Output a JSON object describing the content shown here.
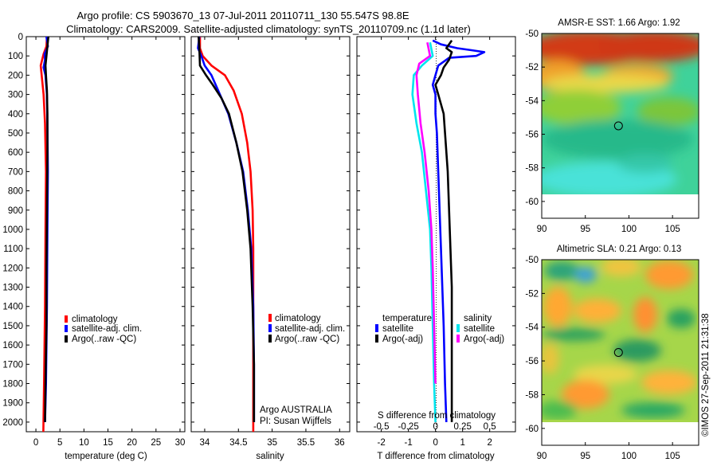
{
  "figure": {
    "title_line1": "Argo profile: CS 5903670_13 07-Jul-2011 20110711_130 55.547S 98.8E",
    "title_line2": "Climatology: CARS2009. Satellite-adjusted climatology: synTS_20110709.nc (1.1d later)",
    "stamp": "©IMOS 27-Sep-2011 21:31:38"
  },
  "colors": {
    "climatology": "#ff0000",
    "satellite": "#0000ff",
    "argo": "#000000",
    "salinity_satellite": "#00e5ee",
    "salinity_argo": "#ff00ff"
  },
  "chart_data": [
    {
      "type": "line",
      "title": "",
      "xlabel": "temperature (deg C)",
      "ylabel": "",
      "xlim": [
        -2,
        31
      ],
      "ylim": [
        2050,
        0
      ],
      "xticks": [
        "0",
        "5",
        "10",
        "15",
        "20",
        "25",
        "30"
      ],
      "yticks": [
        "0",
        "100",
        "200",
        "300",
        "400",
        "500",
        "600",
        "700",
        "800",
        "900",
        "1000",
        "1100",
        "1200",
        "1300",
        "1400",
        "1500",
        "1600",
        "1700",
        "1800",
        "1900",
        "2000"
      ],
      "legend": [
        "climatology",
        "satellite-adj. clim.",
        "Argo(..raw -QC)"
      ],
      "legend_position": "lower-center",
      "series": [
        {
          "name": "climatology",
          "color": "#ff0000",
          "points": [
            [
              2.3,
              0
            ],
            [
              2.2,
              50
            ],
            [
              1.6,
              90
            ],
            [
              1.0,
              150
            ],
            [
              1.2,
              200
            ],
            [
              1.6,
              300
            ],
            [
              1.9,
              450
            ],
            [
              2.1,
              700
            ],
            [
              2.0,
              1000
            ],
            [
              1.9,
              1400
            ],
            [
              1.7,
              1800
            ],
            [
              1.55,
              2050
            ]
          ]
        },
        {
          "name": "satellite-adj. clim.",
          "color": "#0000ff",
          "points": [
            [
              2.2,
              0
            ],
            [
              2.5,
              50
            ],
            [
              1.8,
              90
            ],
            [
              1.9,
              120
            ],
            [
              1.6,
              160
            ],
            [
              2.0,
              200
            ],
            [
              2.3,
              300
            ],
            [
              2.4,
              450
            ],
            [
              2.5,
              700
            ],
            [
              2.4,
              1000
            ],
            [
              2.3,
              1400
            ],
            [
              2.1,
              1800
            ],
            [
              1.9,
              2000
            ]
          ]
        },
        {
          "name": "Argo(..raw -QC)",
          "color": "#000000",
          "points": [
            [
              2.6,
              0
            ],
            [
              2.4,
              50
            ],
            [
              2.2,
              100
            ],
            [
              2.0,
              150
            ],
            [
              2.1,
              200
            ],
            [
              2.3,
              280
            ],
            [
              2.4,
              400
            ],
            [
              2.4,
              600
            ],
            [
              2.3,
              900
            ],
            [
              2.2,
              1200
            ],
            [
              2.2,
              1500
            ],
            [
              2.0,
              1800
            ],
            [
              1.9,
              2000
            ]
          ]
        }
      ]
    },
    {
      "type": "line",
      "title": "",
      "xlabel": "salinity",
      "ylabel": "",
      "xlim": [
        33.8,
        36.15
      ],
      "ylim": [
        2050,
        0
      ],
      "xticks": [
        "34",
        "34.5",
        "35",
        "35.5",
        "36"
      ],
      "legend": [
        "climatology",
        "satellite-adj. clim.",
        "Argo(..raw -QC)"
      ],
      "legend_position": "lower-right",
      "annotations": [
        "Argo AUSTRALIA",
        "PI: Susan Wijffels"
      ],
      "series": [
        {
          "name": "climatology",
          "color": "#ff0000",
          "points": [
            [
              33.93,
              0
            ],
            [
              33.93,
              60
            ],
            [
              33.97,
              100
            ],
            [
              34.1,
              150
            ],
            [
              34.3,
              200
            ],
            [
              34.43,
              280
            ],
            [
              34.55,
              400
            ],
            [
              34.63,
              550
            ],
            [
              34.68,
              700
            ],
            [
              34.71,
              900
            ],
            [
              34.72,
              1100
            ],
            [
              34.72,
              1400
            ],
            [
              34.72,
              1700
            ],
            [
              34.72,
              2050
            ]
          ]
        },
        {
          "name": "satellite-adj. clim.",
          "color": "#0000ff",
          "points": [
            [
              33.92,
              0
            ],
            [
              33.9,
              60
            ],
            [
              33.95,
              100
            ],
            [
              34.0,
              150
            ],
            [
              34.1,
              200
            ],
            [
              34.2,
              280
            ],
            [
              34.35,
              400
            ],
            [
              34.47,
              550
            ],
            [
              34.57,
              700
            ],
            [
              34.64,
              900
            ],
            [
              34.69,
              1100
            ],
            [
              34.72,
              1400
            ],
            [
              34.73,
              1700
            ],
            [
              34.73,
              2000
            ]
          ]
        },
        {
          "name": "Argo(..raw -QC)",
          "color": "#000000",
          "points": [
            [
              33.91,
              0
            ],
            [
              33.92,
              60
            ],
            [
              33.93,
              150
            ],
            [
              34.02,
              200
            ],
            [
              34.12,
              250
            ],
            [
              34.25,
              320
            ],
            [
              34.36,
              400
            ],
            [
              34.47,
              550
            ],
            [
              34.56,
              700
            ],
            [
              34.63,
              900
            ],
            [
              34.68,
              1100
            ],
            [
              34.71,
              1400
            ],
            [
              34.73,
              1700
            ],
            [
              34.73,
              2000
            ]
          ]
        }
      ]
    },
    {
      "type": "line",
      "title": "",
      "xlabel": "T difference from climatology",
      "xlabel_top": "S difference from climatology",
      "ylabel": "",
      "xlim": [
        -2.9,
        2.95
      ],
      "ylim": [
        2050,
        0
      ],
      "xticks": [
        "-2",
        "-1",
        "0",
        "1",
        "2"
      ],
      "xticks_s": [
        "-0.5",
        "-0.25",
        "0",
        "0.25",
        "0.5"
      ],
      "legend_groups": [
        {
          "title": "temperature",
          "entries": [
            "satellite",
            "Argo(-adj)"
          ]
        },
        {
          "title": "salinity",
          "entries": [
            "satellite",
            "Argo(-adj)"
          ]
        }
      ],
      "legend_position": "lower-center",
      "series": [
        {
          "name": "temperature satellite",
          "color": "#0000ff",
          "points": [
            [
              -0.1,
              20
            ],
            [
              0.2,
              40
            ],
            [
              0.8,
              60
            ],
            [
              1.3,
              70
            ],
            [
              1.8,
              80
            ],
            [
              1.5,
              100
            ],
            [
              0.5,
              110
            ],
            [
              0.1,
              150
            ],
            [
              0.0,
              200
            ],
            [
              -0.1,
              250
            ],
            [
              0.0,
              300
            ],
            [
              0.0,
              400
            ],
            [
              0.05,
              500
            ],
            [
              0.1,
              700
            ],
            [
              0.15,
              900
            ],
            [
              0.2,
              1100
            ],
            [
              0.25,
              1300
            ],
            [
              0.3,
              1500
            ],
            [
              0.35,
              1800
            ],
            [
              0.4,
              2000
            ]
          ]
        },
        {
          "name": "temperature Argo(-adj)",
          "color": "#000000",
          "points": [
            [
              0.6,
              20
            ],
            [
              0.4,
              60
            ],
            [
              0.6,
              80
            ],
            [
              0.5,
              120
            ],
            [
              0.3,
              160
            ],
            [
              0.2,
              200
            ],
            [
              0.0,
              250
            ],
            [
              0.1,
              300
            ],
            [
              0.3,
              400
            ],
            [
              0.35,
              500
            ],
            [
              0.45,
              700
            ],
            [
              0.5,
              900
            ],
            [
              0.55,
              1100
            ],
            [
              0.6,
              1300
            ],
            [
              0.6,
              1500
            ],
            [
              0.6,
              1800
            ],
            [
              0.6,
              2000
            ]
          ]
        },
        {
          "name": "salinity satellite",
          "color": "#00e5ee",
          "points": [
            [
              -0.2,
              30
            ],
            [
              -0.1,
              100
            ],
            [
              -0.5,
              150
            ],
            [
              -0.8,
              200
            ],
            [
              -0.85,
              300
            ],
            [
              -0.7,
              450
            ],
            [
              -0.5,
              600
            ],
            [
              -0.35,
              800
            ],
            [
              -0.2,
              1000
            ],
            [
              -0.15,
              1200
            ],
            [
              -0.1,
              1500
            ],
            [
              -0.05,
              1800
            ],
            [
              0.0,
              2000
            ]
          ]
        },
        {
          "name": "salinity Argo(-adj)",
          "color": "#ff00ff",
          "points": [
            [
              -0.3,
              30
            ],
            [
              -0.2,
              100
            ],
            [
              -0.6,
              140
            ],
            [
              -0.7,
              200
            ],
            [
              -0.65,
              300
            ],
            [
              -0.55,
              450
            ],
            [
              -0.4,
              600
            ],
            [
              -0.25,
              800
            ],
            [
              -0.15,
              1000
            ],
            [
              -0.1,
              1200
            ],
            [
              -0.05,
              1500
            ],
            [
              0.0,
              1800
            ]
          ]
        }
      ]
    },
    {
      "type": "heatmap",
      "title": "AMSR-E SST: 1.66  Argo: 1.92",
      "xlim": [
        90,
        108
      ],
      "ylim": [
        -61,
        -50
      ],
      "xticks": [
        "90",
        "95",
        "100",
        "105"
      ],
      "yticks": [
        "-50",
        "-52",
        "-54",
        "-56",
        "-58",
        "-60"
      ],
      "data_extent_lat": [
        -60,
        -49.5
      ],
      "marker": {
        "lon": 98.8,
        "lat": -55.5
      }
    },
    {
      "type": "heatmap",
      "title": "Altimetric SLA: 0.21  Argo: 0.13",
      "xlim": [
        90,
        108
      ],
      "ylim": [
        -61,
        -50
      ],
      "xticks": [
        "90",
        "95",
        "100",
        "105"
      ],
      "yticks": [
        "-50",
        "-52",
        "-54",
        "-56",
        "-58",
        "-60"
      ],
      "data_extent_lat": [
        -60.1,
        -49.5
      ],
      "marker": {
        "lon": 98.8,
        "lat": -55.5
      }
    }
  ]
}
